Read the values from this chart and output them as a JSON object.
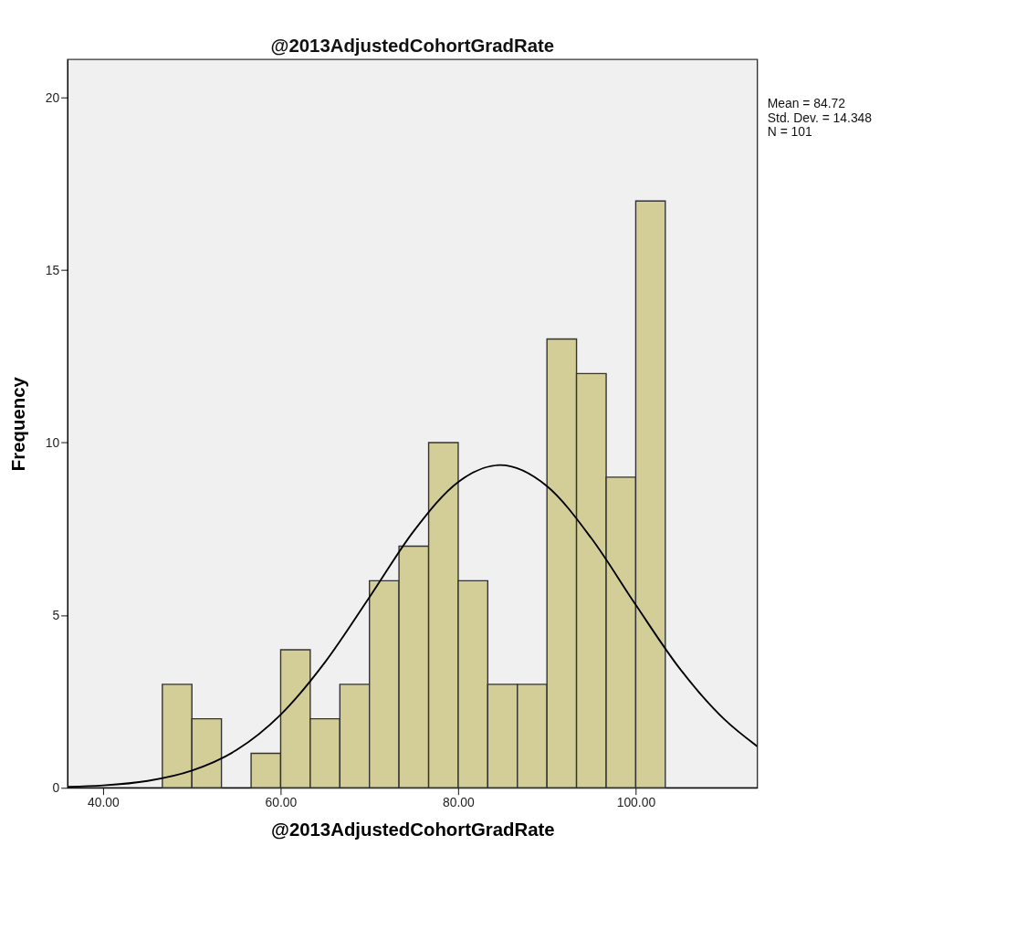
{
  "chart_data": {
    "type": "histogram",
    "title": "@2013AdjustedCohortGradRate",
    "xlabel": "@2013AdjustedCohortGradRate",
    "ylabel": "Frequency",
    "bins": [
      46.67,
      50,
      53.33,
      56.67,
      60,
      63.33,
      66.67,
      70,
      73.33,
      76.67,
      80,
      83.33,
      86.67,
      90,
      93.33,
      96.67,
      100,
      103.33
    ],
    "values": [
      3,
      2,
      0,
      1,
      4,
      2,
      3,
      6,
      7,
      10,
      6,
      3,
      3,
      13,
      12,
      9,
      17
    ],
    "color": "#d3ce97",
    "series": [
      {
        "type": "line",
        "color": "#000000",
        "x": [
          36,
          40,
          45,
          50,
          55,
          60,
          65,
          70,
          75,
          80,
          84.72,
          90,
          95,
          100,
          105,
          110,
          113.7
        ],
        "values": [
          0.03,
          0.07,
          0.2,
          0.5,
          1.09,
          2.12,
          3.64,
          5.52,
          7.44,
          8.86,
          9.35,
          8.74,
          7.23,
          5.3,
          3.44,
          1.98,
          1.2
        ]
      }
    ],
    "xlim": [
      36,
      113.7
    ],
    "ylim": [
      0,
      21.1
    ],
    "xticks": [
      {
        "value": 40,
        "label": "40.00"
      },
      {
        "value": 60,
        "label": "60.00"
      },
      {
        "value": 80,
        "label": "80.00"
      },
      {
        "value": 100,
        "label": "100.00"
      }
    ],
    "yticks": [
      0,
      5,
      10,
      15,
      20
    ],
    "grid": false,
    "annotations": [
      "Mean = 84.72",
      "Std. Dev. = 14.348",
      "N = 101"
    ]
  }
}
